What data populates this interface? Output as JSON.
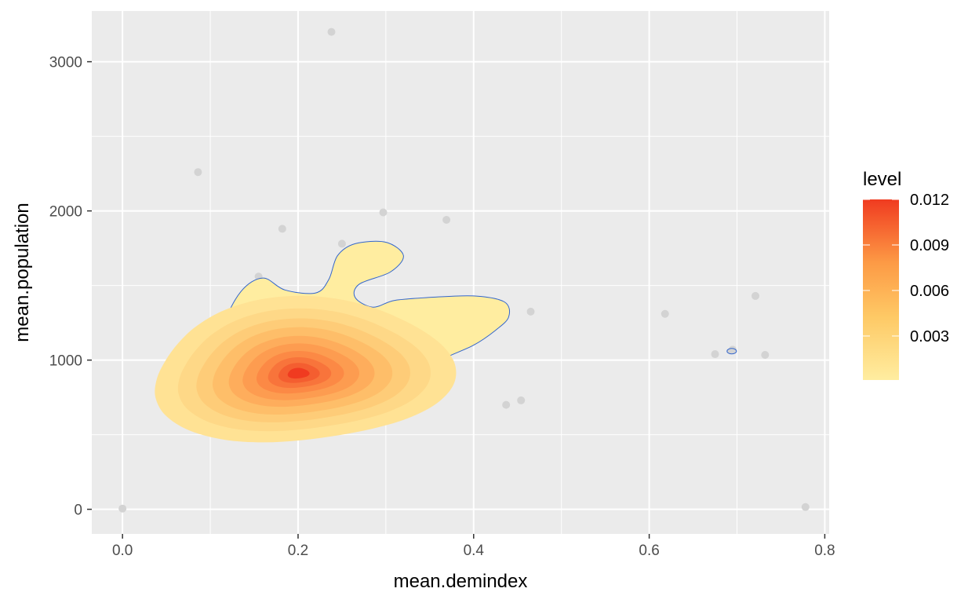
{
  "chart_data": {
    "type": "scatter",
    "title": "",
    "xlabel": "mean.demindex",
    "ylabel": "mean.population",
    "xlim": [
      -0.035,
      0.805
    ],
    "ylim": [
      -165,
      3340
    ],
    "x_ticks": [
      0.0,
      0.2,
      0.4,
      0.6,
      0.8
    ],
    "x_tick_labels": [
      "0.0",
      "0.2",
      "0.4",
      "0.6",
      "0.8"
    ],
    "y_ticks": [
      0,
      1000,
      2000,
      3000
    ],
    "y_tick_labels": [
      "0",
      "1000",
      "2000",
      "3000"
    ],
    "grid": true,
    "points": [
      {
        "x": 0.0,
        "y": 5
      },
      {
        "x": 0.086,
        "y": 2260
      },
      {
        "x": 0.182,
        "y": 1880
      },
      {
        "x": 0.238,
        "y": 3200
      },
      {
        "x": 0.297,
        "y": 1990
      },
      {
        "x": 0.369,
        "y": 1940
      },
      {
        "x": 0.25,
        "y": 1780
      },
      {
        "x": 0.155,
        "y": 1560
      },
      {
        "x": 0.39,
        "y": 1110
      },
      {
        "x": 0.465,
        "y": 1325
      },
      {
        "x": 0.437,
        "y": 700
      },
      {
        "x": 0.454,
        "y": 730
      },
      {
        "x": 0.618,
        "y": 1310
      },
      {
        "x": 0.675,
        "y": 1040
      },
      {
        "x": 0.695,
        "y": 1070
      },
      {
        "x": 0.721,
        "y": 1430
      },
      {
        "x": 0.732,
        "y": 1035
      },
      {
        "x": 0.778,
        "y": 15
      }
    ],
    "density": {
      "peak": {
        "x": 0.2,
        "y": 910
      },
      "outer_contour": [
        [
          0.195,
          560
        ],
        [
          0.25,
          575
        ],
        [
          0.295,
          650
        ],
        [
          0.33,
          760
        ],
        [
          0.34,
          860
        ],
        [
          0.36,
          990
        ],
        [
          0.4,
          1100
        ],
        [
          0.425,
          1200
        ],
        [
          0.44,
          1290
        ],
        [
          0.435,
          1390
        ],
        [
          0.4,
          1430
        ],
        [
          0.35,
          1420
        ],
        [
          0.31,
          1400
        ],
        [
          0.285,
          1355
        ],
        [
          0.265,
          1420
        ],
        [
          0.27,
          1510
        ],
        [
          0.305,
          1590
        ],
        [
          0.32,
          1700
        ],
        [
          0.3,
          1790
        ],
        [
          0.265,
          1780
        ],
        [
          0.245,
          1700
        ],
        [
          0.235,
          1540
        ],
        [
          0.22,
          1450
        ],
        [
          0.185,
          1470
        ],
        [
          0.16,
          1550
        ],
        [
          0.135,
          1460
        ],
        [
          0.115,
          1230
        ],
        [
          0.11,
          980
        ],
        [
          0.115,
          800
        ],
        [
          0.13,
          655
        ],
        [
          0.15,
          585
        ]
      ],
      "small_contour": {
        "x": 0.694,
        "y": 1060
      }
    },
    "legend": {
      "title": "level",
      "placement": "right",
      "min": 0.0001,
      "max": 0.012,
      "ticks": [
        0.003,
        0.006,
        0.009,
        0.012
      ],
      "tick_labels": [
        "0.003",
        "0.006",
        "0.009",
        "0.012"
      ],
      "color_low": "#FFEDA0",
      "color_high": "#F03B20"
    },
    "colors": {
      "panel_bg": "#EBEBEB",
      "grid": "#FFFFFF",
      "point": "#D3D3D3",
      "contour_line": "#3366CC"
    }
  }
}
